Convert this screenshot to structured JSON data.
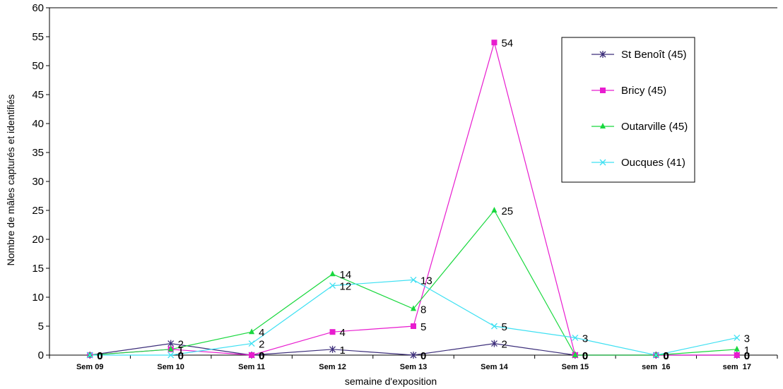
{
  "chart_data": {
    "type": "line",
    "xlabel": "semaine d'exposition",
    "ylabel": "Nombre de mâles capturés et identifiés",
    "categories": [
      "Sem 09",
      "Sem 10",
      "Sem 11",
      "Sem 12",
      "Sem 13",
      "Sem 14",
      "Sem 15",
      "sem  16",
      "sem  17"
    ],
    "ylim": [
      0,
      60
    ],
    "ytick_step": 5,
    "grid": false,
    "legend_position": "top-right",
    "series": [
      {
        "name": "St Benoît (45)",
        "color": "#3c2e7a",
        "marker": "asterisk",
        "values": [
          0,
          2,
          0,
          1,
          0,
          2,
          0,
          0,
          0
        ]
      },
      {
        "name": "Bricy (45)",
        "color": "#e81ccf",
        "marker": "square",
        "values": [
          0,
          1,
          0,
          4,
          5,
          54,
          0,
          0,
          0
        ]
      },
      {
        "name": "Outarville (45)",
        "color": "#19d83e",
        "marker": "triangle",
        "values": [
          0,
          1,
          4,
          14,
          8,
          25,
          0,
          0,
          1
        ]
      },
      {
        "name": "Oucques (41)",
        "color": "#3ee0f2",
        "marker": "x",
        "values": [
          0,
          0,
          2,
          12,
          13,
          5,
          3,
          0,
          3
        ]
      }
    ]
  }
}
